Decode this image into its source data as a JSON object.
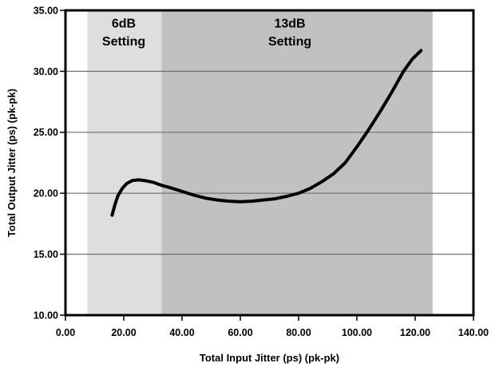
{
  "chart_data": {
    "type": "line",
    "title": "",
    "xlabel": "Total Input Jitter (ps) (pk-pk)",
    "ylabel": "Total Output Jitter (ps) (pk-pk)",
    "xlim": [
      0,
      140
    ],
    "ylim": [
      10,
      35
    ],
    "x_ticks": [
      0,
      20,
      40,
      60,
      80,
      100,
      120,
      140
    ],
    "x_tick_labels": [
      "0.00",
      "20.00",
      "40.00",
      "60.00",
      "80.00",
      "100.00",
      "120.00",
      "140.00"
    ],
    "y_ticks": [
      10,
      15,
      20,
      25,
      30,
      35
    ],
    "y_tick_labels": [
      "10.00",
      "15.00",
      "20.00",
      "25.00",
      "30.00",
      "35.00"
    ],
    "grid": true,
    "gridline_color": "#6e6e6e",
    "frame_color": "#000000",
    "legend": "none",
    "regions": [
      {
        "name": "region-6db",
        "label_line1": "6dB",
        "label_line2": "Setting",
        "x_start": 7.5,
        "x_end": 33,
        "label_x": 20,
        "color": "#dedede"
      },
      {
        "name": "region-13db",
        "label_line1": "13dB",
        "label_line2": "Setting",
        "x_start": 33,
        "x_end": 126,
        "label_x": 77,
        "color": "#c1c1c1"
      }
    ],
    "series": [
      {
        "name": "total-output-jitter-curve",
        "color": "#000000",
        "points": [
          [
            16,
            18.2
          ],
          [
            17,
            19.1
          ],
          [
            18,
            19.8
          ],
          [
            19.5,
            20.4
          ],
          [
            21,
            20.8
          ],
          [
            23,
            21.05
          ],
          [
            25,
            21.1
          ],
          [
            27,
            21.05
          ],
          [
            30,
            20.9
          ],
          [
            33,
            20.65
          ],
          [
            36,
            20.45
          ],
          [
            40,
            20.15
          ],
          [
            44,
            19.85
          ],
          [
            48,
            19.6
          ],
          [
            52,
            19.45
          ],
          [
            56,
            19.35
          ],
          [
            60,
            19.3
          ],
          [
            64,
            19.35
          ],
          [
            68,
            19.45
          ],
          [
            72,
            19.55
          ],
          [
            76,
            19.75
          ],
          [
            80,
            20.0
          ],
          [
            84,
            20.4
          ],
          [
            88,
            20.95
          ],
          [
            92,
            21.6
          ],
          [
            96,
            22.5
          ],
          [
            100,
            23.8
          ],
          [
            104,
            25.2
          ],
          [
            108,
            26.7
          ],
          [
            112,
            28.3
          ],
          [
            116,
            30.0
          ],
          [
            119,
            31.0
          ],
          [
            122,
            31.7
          ]
        ]
      }
    ]
  }
}
